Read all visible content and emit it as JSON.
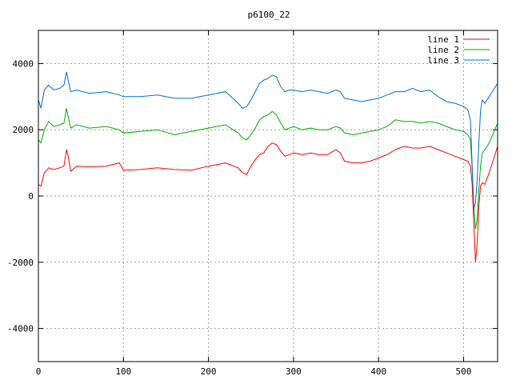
{
  "chart_data": {
    "type": "line",
    "title": "p6100_22",
    "xlabel": "",
    "ylabel": "",
    "xlim": [
      0,
      540
    ],
    "ylim": [
      -5000,
      5000
    ],
    "x_ticks": [
      0,
      100,
      200,
      300,
      400,
      500
    ],
    "y_ticks": [
      -4000,
      -2000,
      0,
      2000,
      4000
    ],
    "grid": true,
    "legend_position": "top-right",
    "series": [
      {
        "name": "line 1",
        "color": "#ff0000",
        "x": [
          0,
          3,
          7,
          12,
          18,
          25,
          30,
          33,
          35,
          38,
          45,
          60,
          80,
          95,
          100,
          120,
          140,
          160,
          180,
          200,
          220,
          235,
          240,
          245,
          250,
          255,
          260,
          265,
          270,
          275,
          280,
          285,
          290,
          295,
          300,
          310,
          320,
          330,
          340,
          350,
          355,
          360,
          370,
          380,
          390,
          400,
          410,
          420,
          430,
          440,
          450,
          460,
          470,
          480,
          490,
          500,
          505,
          508,
          510,
          512,
          514,
          516,
          518,
          520,
          522,
          525,
          530,
          535,
          540
        ],
        "values": [
          350,
          300,
          700,
          850,
          800,
          850,
          900,
          1400,
          1200,
          750,
          900,
          880,
          900,
          1000,
          780,
          800,
          850,
          800,
          780,
          900,
          1000,
          850,
          700,
          650,
          900,
          1100,
          1250,
          1300,
          1500,
          1600,
          1550,
          1350,
          1200,
          1250,
          1300,
          1250,
          1300,
          1250,
          1250,
          1400,
          1300,
          1050,
          1000,
          1000,
          1050,
          1150,
          1250,
          1400,
          1500,
          1450,
          1450,
          1500,
          1400,
          1300,
          1200,
          1100,
          1050,
          900,
          400,
          -800,
          -2000,
          -1400,
          -300,
          300,
          400,
          350,
          700,
          1100,
          1500
        ]
      },
      {
        "name": "line 2",
        "color": "#00aa00",
        "x": [
          0,
          3,
          7,
          12,
          18,
          25,
          30,
          33,
          35,
          38,
          45,
          60,
          80,
          95,
          100,
          120,
          140,
          160,
          180,
          200,
          220,
          235,
          240,
          245,
          250,
          255,
          260,
          265,
          270,
          275,
          280,
          285,
          290,
          295,
          300,
          310,
          320,
          330,
          340,
          350,
          355,
          360,
          370,
          380,
          390,
          400,
          410,
          420,
          430,
          440,
          450,
          460,
          470,
          480,
          490,
          500,
          505,
          508,
          510,
          512,
          514,
          516,
          518,
          520,
          522,
          525,
          530,
          535,
          540
        ],
        "values": [
          1700,
          1600,
          2000,
          2250,
          2100,
          2150,
          2200,
          2650,
          2400,
          2050,
          2150,
          2050,
          2100,
          2000,
          1900,
          1950,
          2000,
          1850,
          1950,
          2050,
          2150,
          1900,
          1750,
          1700,
          1850,
          2050,
          2300,
          2400,
          2450,
          2550,
          2450,
          2200,
          2000,
          2050,
          2100,
          2000,
          2050,
          2000,
          2000,
          2100,
          2050,
          1900,
          1850,
          1900,
          1950,
          2000,
          2100,
          2300,
          2250,
          2250,
          2200,
          2250,
          2200,
          2100,
          2000,
          1950,
          1850,
          1700,
          900,
          -300,
          -1000,
          -700,
          200,
          900,
          1300,
          1400,
          1600,
          1900,
          2200
        ]
      },
      {
        "name": "line 3",
        "color": "#0070d0",
        "x": [
          0,
          3,
          7,
          12,
          18,
          25,
          30,
          33,
          35,
          38,
          45,
          60,
          80,
          95,
          100,
          120,
          140,
          160,
          180,
          200,
          220,
          235,
          240,
          245,
          250,
          255,
          260,
          265,
          270,
          275,
          280,
          285,
          290,
          295,
          300,
          310,
          320,
          330,
          340,
          350,
          355,
          360,
          370,
          380,
          390,
          400,
          410,
          420,
          430,
          440,
          450,
          460,
          470,
          480,
          490,
          500,
          505,
          508,
          510,
          512,
          514,
          516,
          518,
          520,
          522,
          525,
          530,
          535,
          540
        ],
        "values": [
          2900,
          2650,
          3200,
          3350,
          3200,
          3250,
          3350,
          3750,
          3500,
          3150,
          3200,
          3100,
          3150,
          3050,
          3000,
          3000,
          3050,
          2950,
          2950,
          3050,
          3150,
          2800,
          2650,
          2700,
          2900,
          3150,
          3400,
          3500,
          3550,
          3650,
          3600,
          3300,
          3150,
          3200,
          3200,
          3150,
          3200,
          3150,
          3100,
          3200,
          3150,
          2950,
          2900,
          2850,
          2900,
          2950,
          3050,
          3150,
          3150,
          3250,
          3150,
          3200,
          3000,
          2850,
          2800,
          2700,
          2600,
          2300,
          1000,
          -400,
          -200,
          500,
          1600,
          2600,
          2900,
          2800,
          3000,
          3200,
          3400
        ]
      }
    ]
  }
}
